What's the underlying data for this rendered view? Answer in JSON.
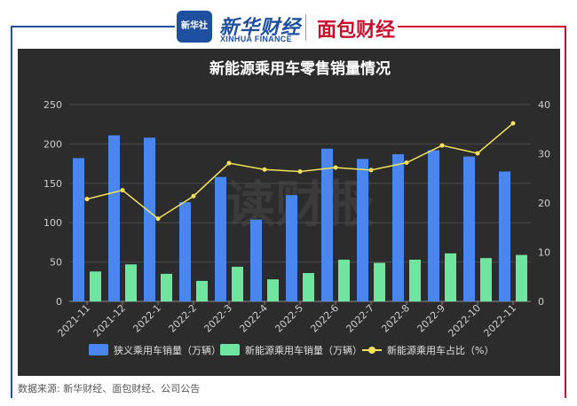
{
  "header": {
    "xinhua_badge": "新华社",
    "xinhua_name": "新华财经",
    "xinhua_english": "XINHUA FINANCE",
    "mianbao_name": "面包财经"
  },
  "footer": {
    "source": "数据来源: 新华财经、面包财经、公司公告"
  },
  "watermark": "读财报",
  "colors": {
    "background": "#2c2c2c",
    "narrow_sales": "#4a86f0",
    "nev_sales": "#6ee6a0",
    "nev_share": "#f2e35a",
    "frame_blue": "#1e4fa0",
    "frame_red": "#c8102e"
  },
  "chart_data": {
    "type": "bar",
    "title": "新能源乘用车零售销量情况",
    "categories": [
      "2021-11",
      "2021-12",
      "2022-1",
      "2022-2",
      "2022-3",
      "2022-4",
      "2022-5",
      "2022-6",
      "2022-7",
      "2022-8",
      "2022-9",
      "2022-10",
      "2022-11"
    ],
    "y_left": {
      "min": 0,
      "max": 250,
      "ticks": [
        "0",
        "50",
        "100",
        "150",
        "200",
        "250"
      ]
    },
    "y_right": {
      "min": 0,
      "max": 40,
      "ticks": [
        "0",
        "10",
        "20",
        "30",
        "40"
      ]
    },
    "grid": true,
    "legend_position": "bottom",
    "series": [
      {
        "name": "狭义乘用车销量（万辆）",
        "type": "bar",
        "axis": "left",
        "values": [
          182,
          211,
          208,
          126,
          158,
          104,
          135,
          194,
          181,
          187,
          192,
          184,
          165
        ]
      },
      {
        "name": "新能源乘用车销量（万辆）",
        "type": "bar",
        "axis": "left",
        "values": [
          38,
          47,
          35,
          26,
          44,
          28,
          36,
          53,
          49,
          53,
          61,
          55,
          59
        ]
      },
      {
        "name": "新能源乘用车占比（%）",
        "type": "line",
        "axis": "right",
        "values": [
          20.8,
          22.6,
          16.8,
          21.4,
          28.1,
          26.8,
          26.4,
          27.2,
          26.7,
          28.2,
          31.7,
          30.1,
          36.2
        ]
      }
    ]
  }
}
